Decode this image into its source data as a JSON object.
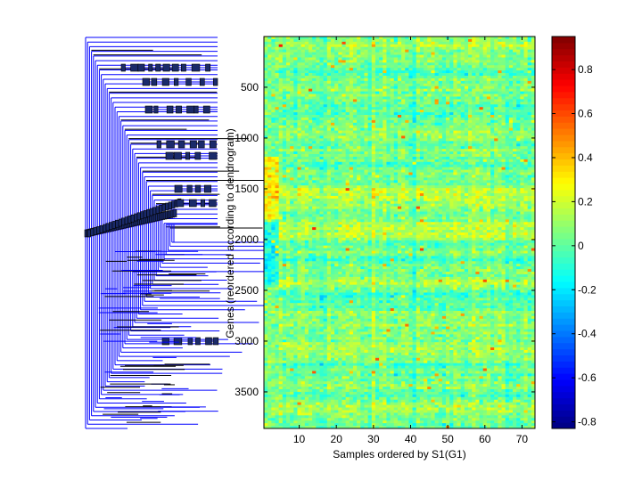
{
  "chart_data": {
    "type": "heatmap",
    "xlabel": "Samples ordered by S1(G1)",
    "ylabel": "Genes (reordered according to dendrogram)",
    "xlim": [
      0.5,
      73.5
    ],
    "ylim": [
      0.5,
      3860
    ],
    "xticks": [
      10,
      20,
      30,
      40,
      50,
      60,
      70
    ],
    "yticks": [
      500,
      1000,
      1500,
      2000,
      2500,
      3000,
      3500
    ],
    "n_samples": 73,
    "n_genes_approx": 3860,
    "colormap": "jet",
    "colorbar": {
      "range": [
        -0.83,
        0.95
      ],
      "ticks": [
        -0.8,
        -0.6,
        -0.4,
        -0.2,
        0,
        0.2,
        0.4,
        0.6,
        0.8
      ],
      "tick_labels": [
        "-0.8",
        "-0.6",
        "-0.4",
        "-0.2",
        "0",
        "0.2",
        "0.4",
        "0.6",
        "0.8"
      ],
      "location": "right"
    },
    "value_summary": {
      "typical_mean": 0.05,
      "typical_spread": 0.1
    },
    "left_panel": "dendrogram",
    "dendrogram_colors": {
      "link": "#0000ff",
      "leaf_box": "#000000"
    }
  }
}
